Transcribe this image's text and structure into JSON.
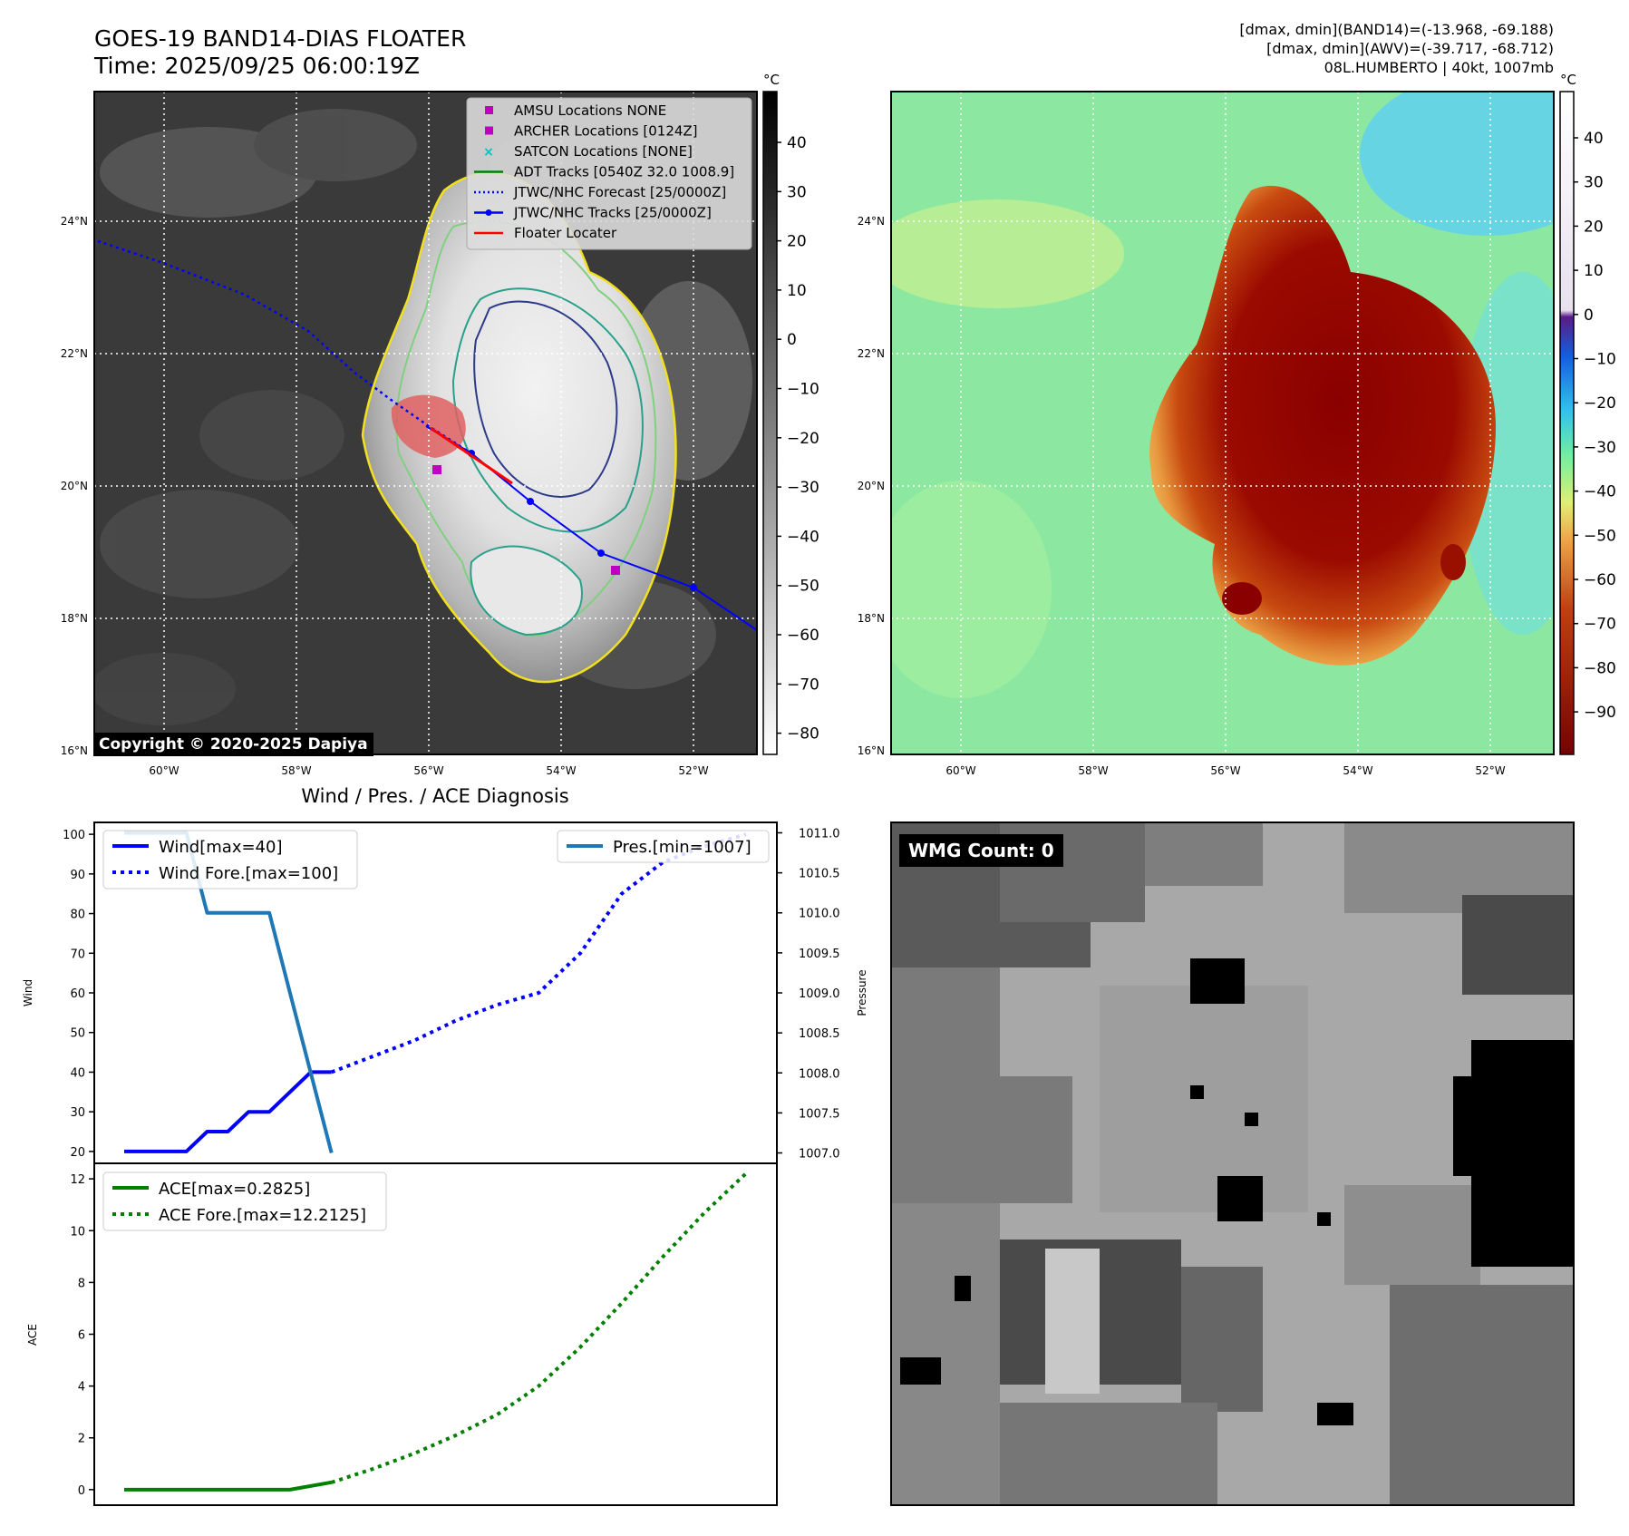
{
  "header": {
    "title": "GOES-19 BAND14-DIAS FLOATER",
    "time": "Time: 2025/09/25 06:00:19Z",
    "stats": [
      "[dmax, dmin](BAND14)=(-13.968, -69.188)",
      "[dmax, dmin](AWV)=(-39.717, -68.712)",
      "08L.HUMBERTO | 40kt, 1007mb"
    ]
  },
  "map_axes": {
    "lat_labels": [
      "24°N",
      "22°N",
      "20°N",
      "18°N",
      "16°N"
    ],
    "lon_labels": [
      "60°W",
      "58°W",
      "56°W",
      "54°W",
      "52°W"
    ]
  },
  "legend": {
    "items": [
      {
        "label": "AMSU Locations NONE",
        "kind": "square",
        "color": "#c000c0"
      },
      {
        "label": "ARCHER Locations [0124Z]",
        "kind": "square",
        "color": "#c000c0"
      },
      {
        "label": "SATCON Locations [NONE]",
        "kind": "x",
        "color": "#00bfbf"
      },
      {
        "label": "ADT Tracks [0540Z 32.0 1008.9]",
        "kind": "line",
        "color": "#008000"
      },
      {
        "label": "JTWC/NHC Forecast [25/0000Z]",
        "kind": "dotted",
        "color": "#0000ff"
      },
      {
        "label": "JTWC/NHC Tracks [25/0000Z]",
        "kind": "line-dot",
        "color": "#0000ff"
      },
      {
        "label": "Floater Locater",
        "kind": "line",
        "color": "#ff0000"
      }
    ]
  },
  "colorbar_ir": {
    "unit": "°C",
    "ticks": [
      "40",
      "30",
      "20",
      "10",
      "0",
      "−10",
      "−20",
      "−30",
      "−40",
      "−50",
      "−60",
      "−70",
      "−80"
    ]
  },
  "colorbar_wv": {
    "unit": "°C",
    "ticks": [
      "40",
      "30",
      "20",
      "10",
      "0",
      "−10",
      "−20",
      "−30",
      "−40",
      "−50",
      "−60",
      "−70",
      "−80",
      "−90"
    ]
  },
  "copyright": "Copyright © 2020-2025 Dapiya",
  "wmg_count": "WMG Count: 0",
  "diag": {
    "title": "Wind / Pres. / ACE Diagnosis",
    "wind_ylabel": "Wind",
    "pres_ylabel": "Pressure",
    "ace_ylabel": "ACE",
    "wind_ticks": [
      "100",
      "90",
      "80",
      "70",
      "60",
      "50",
      "40",
      "30",
      "20"
    ],
    "pres_ticks": [
      "1011.0",
      "1010.5",
      "1010.0",
      "1009.5",
      "1009.0",
      "1008.5",
      "1008.0",
      "1007.5",
      "1007.0"
    ],
    "ace_ticks": [
      "12",
      "10",
      "8",
      "6",
      "4",
      "2",
      "0"
    ],
    "legend_wind": "Wind[max=40]",
    "legend_wind_fore": "Wind Fore.[max=100]",
    "legend_pres": "Pres.[min=1007]",
    "legend_ace": "ACE[max=0.2825]",
    "legend_ace_fore": "ACE Fore.[max=12.2125]"
  },
  "colors": {
    "wind": "#0000ff",
    "pres": "#1f77b4",
    "ace": "#008000",
    "forecast_track": "#0000ff",
    "floater": "#ff0000"
  },
  "chart_data": [
    {
      "type": "line",
      "title": "Wind / Pres. / ACE Diagnosis",
      "ylabel": "Wind",
      "y2label": "Pressure",
      "ylim": [
        17,
        103
      ],
      "y2lim": [
        1006.87,
        1011.13
      ],
      "x": [
        0,
        1,
        2,
        3,
        4,
        5,
        6,
        7,
        8,
        9,
        10,
        11,
        12,
        13,
        14,
        15,
        16,
        17,
        18,
        19,
        20,
        21,
        22,
        23,
        24,
        25,
        26,
        27,
        28,
        29,
        30
      ],
      "series": [
        {
          "name": "Wind[max=40]",
          "axis": "left",
          "style": "solid",
          "x": [
            0,
            1,
            2,
            3,
            4,
            5,
            6,
            7,
            8,
            9,
            10
          ],
          "values": [
            20,
            20,
            20,
            20,
            25,
            25,
            30,
            30,
            35,
            40,
            40
          ]
        },
        {
          "name": "Wind Fore.[max=100]",
          "axis": "left",
          "style": "dotted",
          "x": [
            10,
            12,
            14,
            16,
            18,
            20,
            22,
            24,
            26,
            28,
            30
          ],
          "values": [
            40,
            44,
            48,
            53,
            57,
            60,
            70,
            85,
            93,
            97,
            100
          ]
        },
        {
          "name": "Pres.[min=1007]",
          "axis": "right",
          "style": "solid",
          "x": [
            0,
            1,
            2,
            3,
            4,
            5,
            6,
            7,
            8,
            9,
            10
          ],
          "values": [
            1011,
            1011,
            1011,
            1011,
            1010,
            1010,
            1010,
            1010,
            1009,
            1008,
            1007
          ]
        },
        {
          "name": "ACE[max=0.2825]",
          "axis": "ace",
          "style": "solid",
          "x": [
            0,
            2,
            4,
            6,
            8,
            10
          ],
          "values": [
            0,
            0,
            0,
            0,
            0,
            0.2825
          ]
        },
        {
          "name": "ACE Fore.[max=12.2125]",
          "axis": "ace",
          "style": "dotted",
          "x": [
            10,
            12,
            14,
            16,
            18,
            20,
            22,
            24,
            26,
            28,
            30
          ],
          "values": [
            0.28,
            0.8,
            1.4,
            2.1,
            2.9,
            4.0,
            5.5,
            7.2,
            9.0,
            10.7,
            12.2125
          ]
        }
      ],
      "ace_ylim": [
        -0.6,
        12.6
      ]
    }
  ]
}
